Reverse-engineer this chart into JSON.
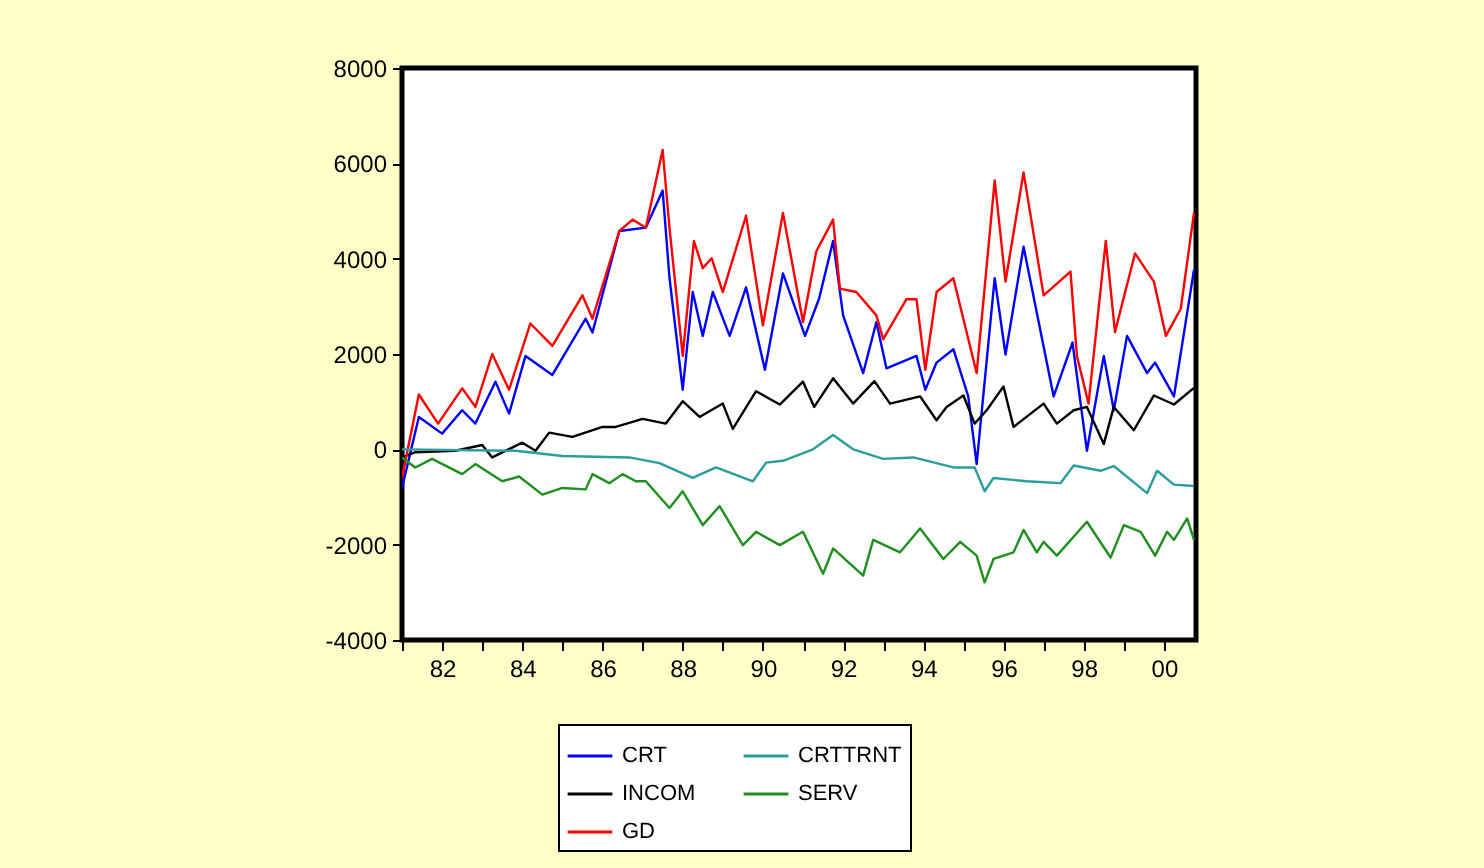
{
  "chart_data": {
    "type": "line",
    "xlim": [
      1981,
      2000.8
    ],
    "xticks": [
      {
        "value": 1981,
        "label": null
      },
      {
        "value": 1982,
        "label": "82"
      },
      {
        "value": 1983,
        "label": null
      },
      {
        "value": 1984,
        "label": "84"
      },
      {
        "value": 1985,
        "label": null
      },
      {
        "value": 1986,
        "label": "86"
      },
      {
        "value": 1987,
        "label": null
      },
      {
        "value": 1988,
        "label": "88"
      },
      {
        "value": 1989,
        "label": null
      },
      {
        "value": 1990,
        "label": "90"
      },
      {
        "value": 1991,
        "label": null
      },
      {
        "value": 1992,
        "label": "92"
      },
      {
        "value": 1993,
        "label": null
      },
      {
        "value": 1994,
        "label": "94"
      },
      {
        "value": 1995,
        "label": null
      },
      {
        "value": 1996,
        "label": "96"
      },
      {
        "value": 1997,
        "label": null
      },
      {
        "value": 1998,
        "label": "98"
      },
      {
        "value": 1999,
        "label": null
      },
      {
        "value": 2000,
        "label": "00"
      }
    ],
    "ylim": [
      -4000,
      8000
    ],
    "yticks": [
      -4000,
      -2000,
      0,
      2000,
      4000,
      6000,
      8000
    ],
    "grid": false,
    "legend": "bottom",
    "line_style": "solid",
    "marker": "none",
    "series": [
      {
        "name": "CRT",
        "color": "#0000ff",
        "x": [
          1981.0,
          1981.42,
          1982.0,
          1982.5,
          1982.83,
          1983.33,
          1983.67,
          1984.08,
          1984.75,
          1985.58,
          1985.75,
          1986.42,
          1987.08,
          1987.5,
          1987.67,
          1988.0,
          1988.25,
          1988.5,
          1988.75,
          1989.17,
          1989.58,
          1990.05,
          1990.5,
          1991.05,
          1991.4,
          1991.75,
          1992.0,
          1992.5,
          1992.83,
          1993.08,
          1993.83,
          1994.05,
          1994.33,
          1994.75,
          1995.12,
          1995.33,
          1995.78,
          1996.05,
          1996.5,
          1997.25,
          1997.72,
          1998.08,
          1998.5,
          1998.75,
          1999.08,
          1999.58,
          1999.78,
          2000.25,
          2000.75
        ],
        "values": [
          -810,
          680,
          330,
          820,
          540,
          1420,
          750,
          1960,
          1560,
          2740,
          2450,
          4580,
          4650,
          5430,
          3600,
          1250,
          3300,
          2380,
          3300,
          2380,
          3400,
          1670,
          3690,
          2380,
          3160,
          4370,
          2810,
          1600,
          2670,
          1700,
          1960,
          1250,
          1820,
          2100,
          1110,
          -310,
          3590,
          1990,
          4250,
          1110,
          2240,
          -30,
          1960,
          820,
          2380,
          1600,
          1820,
          1110,
          3770
        ]
      },
      {
        "name": "INCOM",
        "color": "#000000",
        "x": [
          1981.0,
          1981.33,
          1982.33,
          1983.0,
          1983.25,
          1984.0,
          1984.33,
          1984.67,
          1985.25,
          1986.0,
          1986.33,
          1987.0,
          1987.58,
          1988.0,
          1988.42,
          1989.0,
          1989.25,
          1989.83,
          1990.42,
          1991.0,
          1991.28,
          1991.75,
          1992.25,
          1992.78,
          1993.17,
          1993.92,
          1994.33,
          1994.58,
          1995.0,
          1995.28,
          1995.58,
          1996.0,
          1996.25,
          1997.0,
          1997.33,
          1997.75,
          1998.08,
          1998.5,
          1998.75,
          1999.25,
          1999.75,
          2000.25,
          2000.75
        ],
        "values": [
          -170,
          -60,
          -30,
          90,
          -170,
          140,
          -30,
          350,
          260,
          470,
          470,
          640,
          540,
          1010,
          680,
          960,
          430,
          1220,
          940,
          1420,
          890,
          1490,
          960,
          1430,
          960,
          1110,
          610,
          890,
          1130,
          540,
          820,
          1320,
          470,
          960,
          540,
          820,
          890,
          110,
          890,
          400,
          1130,
          940,
          1290
        ]
      },
      {
        "name": "GD",
        "color": "#ff0000",
        "x": [
          1981.0,
          1981.42,
          1981.9,
          1982.5,
          1982.83,
          1983.25,
          1983.67,
          1984.2,
          1984.75,
          1985.5,
          1985.75,
          1986.42,
          1986.75,
          1987.08,
          1987.5,
          1987.67,
          1988.0,
          1988.28,
          1988.5,
          1988.72,
          1989.0,
          1989.58,
          1990.0,
          1990.5,
          1991.0,
          1991.33,
          1991.75,
          1991.92,
          1992.33,
          1992.83,
          1993.0,
          1993.58,
          1993.83,
          1994.05,
          1994.33,
          1994.75,
          1995.33,
          1995.78,
          1996.05,
          1996.5,
          1997.0,
          1997.67,
          1997.83,
          1998.12,
          1998.55,
          1998.78,
          1999.28,
          1999.75,
          2000.05,
          2000.42,
          2000.75
        ],
        "values": [
          -600,
          1150,
          540,
          1280,
          890,
          2000,
          1250,
          2640,
          2170,
          3230,
          2740,
          4580,
          4820,
          4650,
          6280,
          4650,
          1960,
          4370,
          3800,
          4010,
          3300,
          4900,
          2600,
          4960,
          2670,
          4150,
          4820,
          3370,
          3300,
          2810,
          2310,
          3150,
          3150,
          1670,
          3300,
          3590,
          1600,
          5640,
          3520,
          5810,
          3230,
          3730,
          1960,
          960,
          4370,
          2460,
          4110,
          3520,
          2380,
          2950,
          4960
        ]
      },
      {
        "name": "CRTTRNT",
        "color": "#2a9d9d",
        "x": [
          1981.0,
          1983.83,
          1985.0,
          1986.67,
          1987.42,
          1988.25,
          1988.83,
          1989.75,
          1990.08,
          1990.5,
          1991.25,
          1991.75,
          1992.25,
          1993.0,
          1993.75,
          1994.75,
          1995.28,
          1995.53,
          1995.75,
          1996.58,
          1997.42,
          1997.75,
          1998.42,
          1998.75,
          1999.58,
          1999.83,
          2000.25,
          2000.75
        ],
        "values": [
          0,
          -30,
          -140,
          -170,
          -290,
          -600,
          -380,
          -670,
          -280,
          -240,
          0,
          300,
          0,
          -200,
          -170,
          -380,
          -380,
          -880,
          -600,
          -670,
          -710,
          -340,
          -450,
          -350,
          -920,
          -450,
          -740,
          -770
        ]
      },
      {
        "name": "SERV",
        "color": "#1f8f1f",
        "x": [
          1981.0,
          1981.33,
          1981.75,
          1982.5,
          1982.83,
          1983.5,
          1983.92,
          1984.5,
          1985.0,
          1985.58,
          1985.75,
          1986.17,
          1986.5,
          1986.83,
          1987.08,
          1987.67,
          1988.0,
          1988.5,
          1988.92,
          1989.5,
          1989.83,
          1990.42,
          1991.0,
          1991.5,
          1991.75,
          1992.5,
          1992.75,
          1993.42,
          1993.92,
          1994.5,
          1994.92,
          1995.33,
          1995.53,
          1995.75,
          1996.25,
          1996.5,
          1996.83,
          1997.0,
          1997.33,
          1998.08,
          1998.67,
          1999.0,
          1999.42,
          1999.78,
          2000.08,
          2000.25,
          2000.58,
          2000.75
        ],
        "values": [
          -170,
          -380,
          -200,
          -520,
          -310,
          -670,
          -570,
          -950,
          -810,
          -840,
          -520,
          -710,
          -520,
          -670,
          -670,
          -1230,
          -880,
          -1590,
          -1190,
          -2010,
          -1730,
          -2010,
          -1730,
          -2610,
          -2080,
          -2650,
          -1900,
          -2160,
          -1660,
          -2300,
          -1940,
          -2230,
          -2790,
          -2300,
          -2160,
          -1690,
          -2160,
          -1940,
          -2230,
          -1520,
          -2270,
          -1590,
          -1730,
          -2230,
          -1730,
          -1900,
          -1450,
          -1900
        ]
      }
    ]
  }
}
